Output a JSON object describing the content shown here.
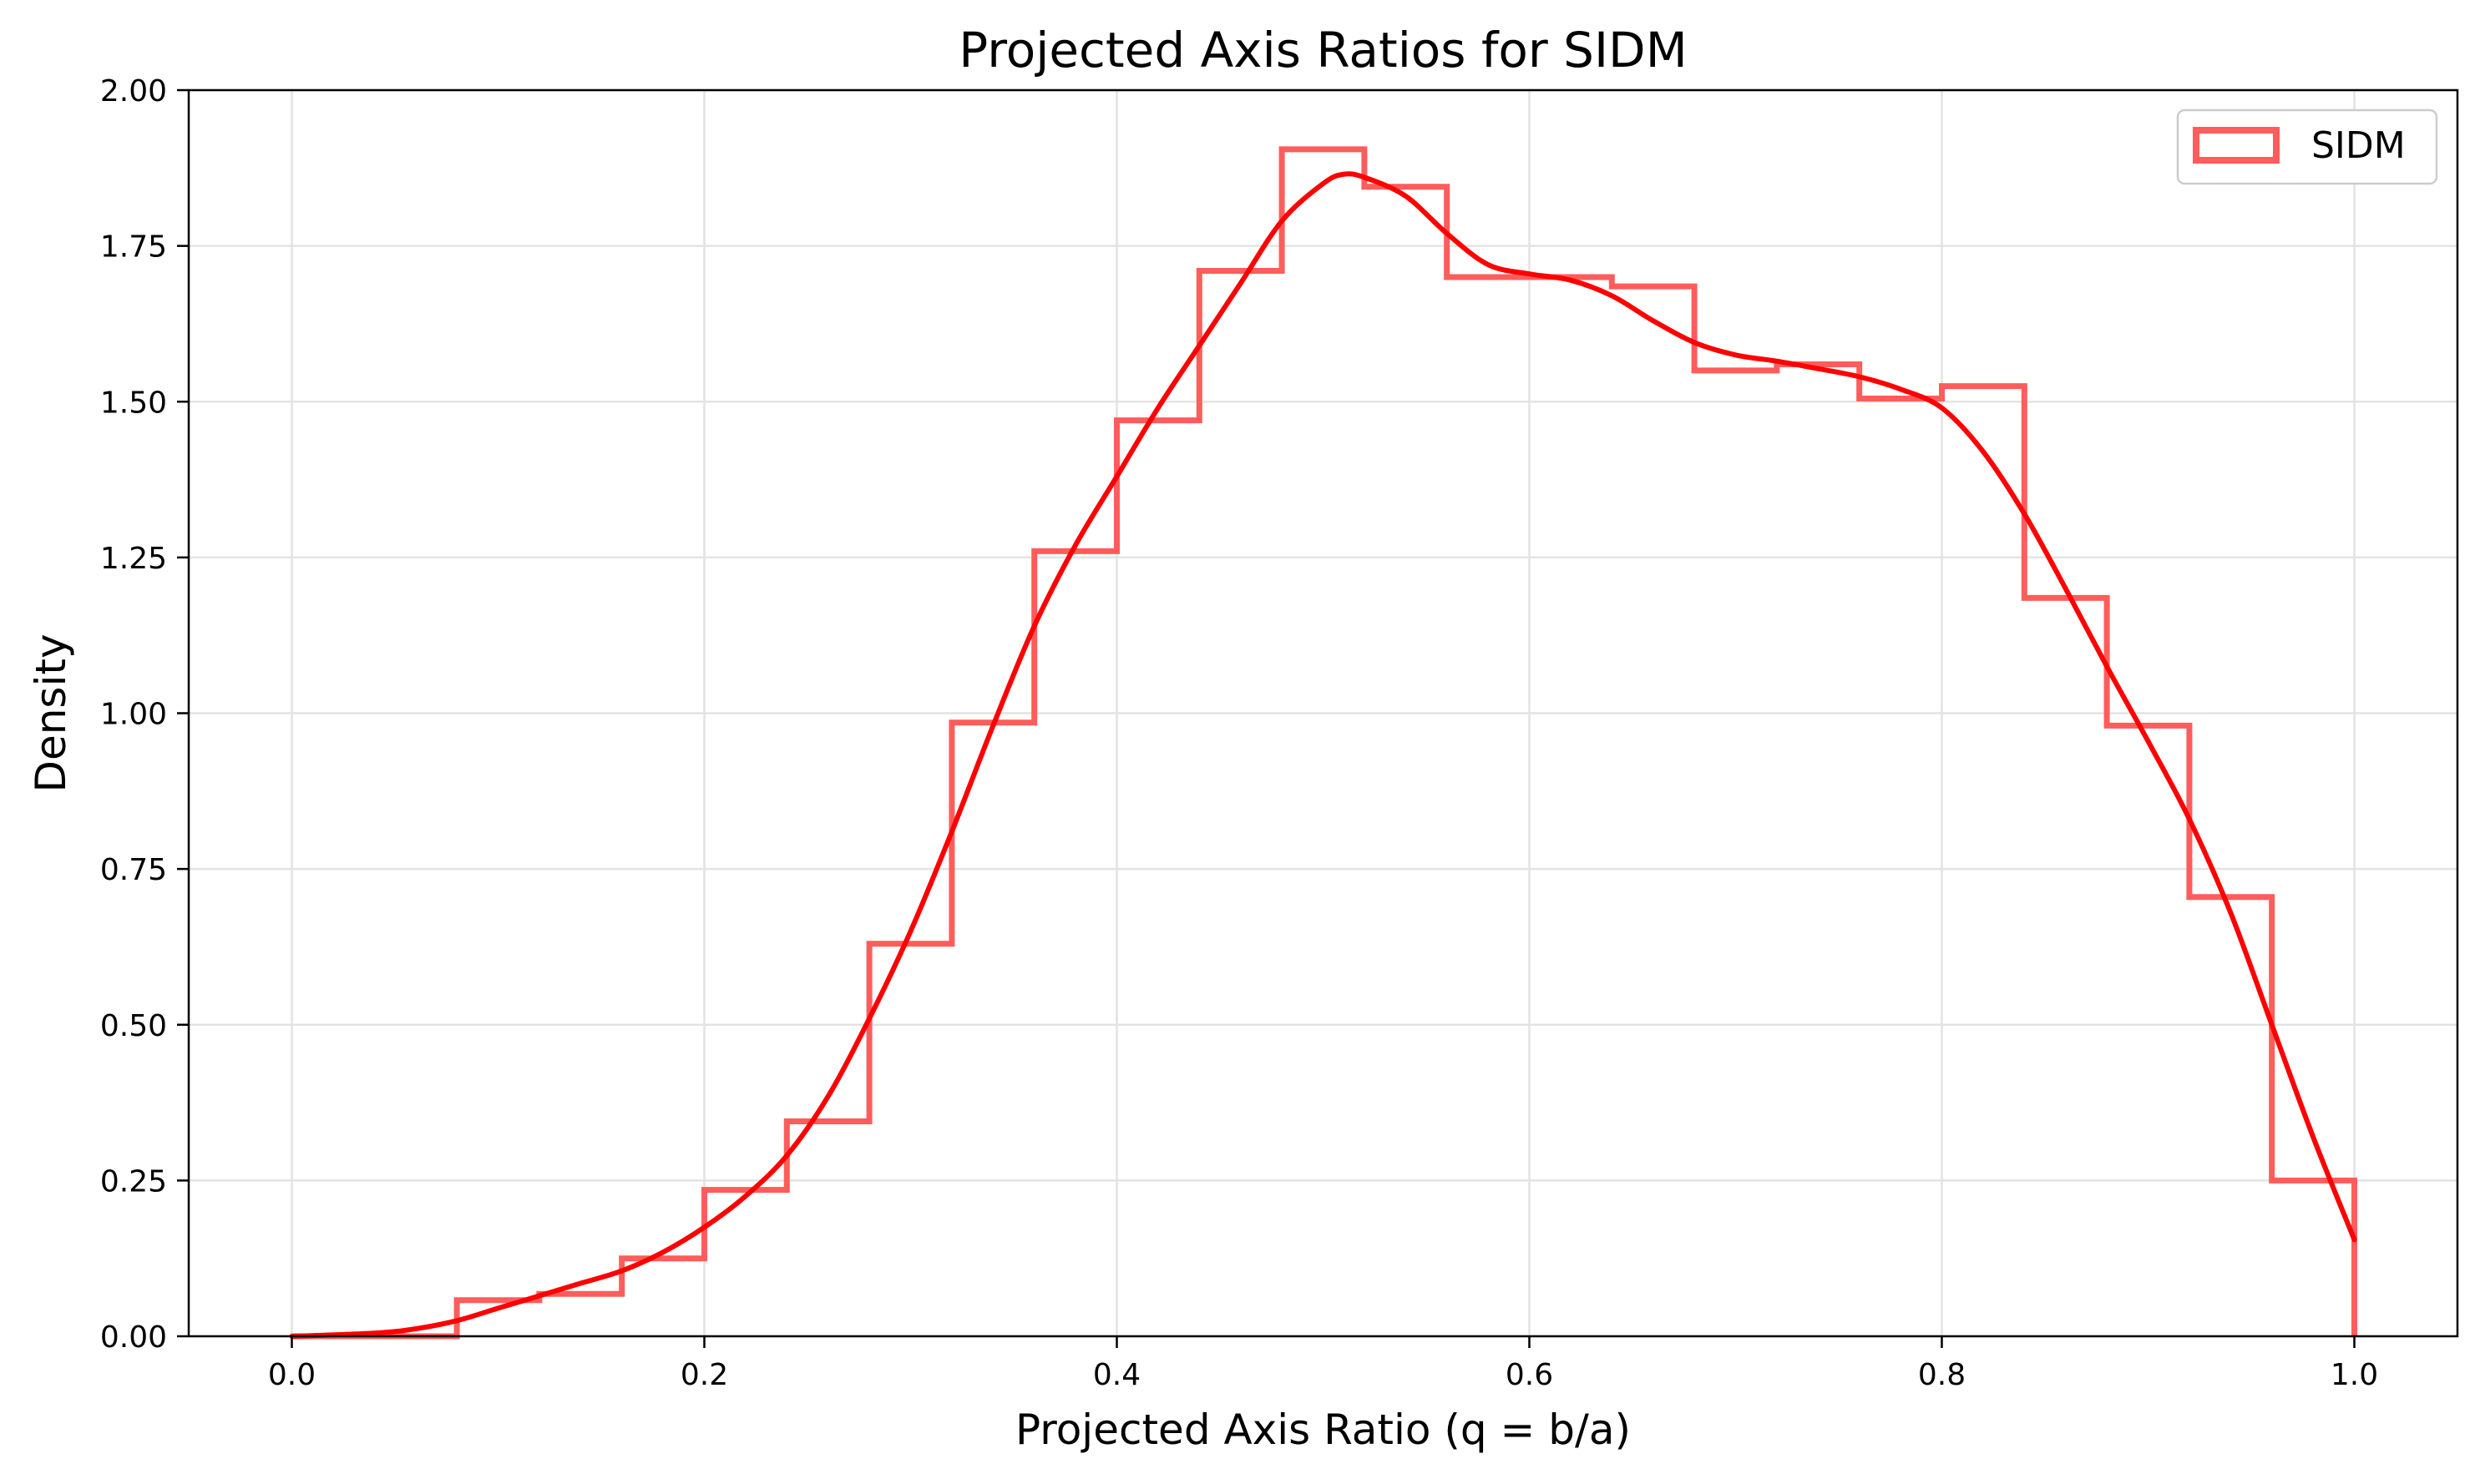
{
  "chart_data": {
    "type": "bar",
    "subtype": "step-histogram-with-kde",
    "title": "Projected Axis Ratios for SIDM",
    "xlabel": "Projected Axis Ratio (q = b/a)",
    "ylabel": "Density",
    "xlim": [
      -0.05,
      1.05
    ],
    "ylim": [
      0.0,
      2.0
    ],
    "xticks": [
      0.0,
      0.2,
      0.4,
      0.6,
      0.8,
      1.0
    ],
    "xtick_labels": [
      "0.0",
      "0.2",
      "0.4",
      "0.6",
      "0.8",
      "1.0"
    ],
    "yticks": [
      0.0,
      0.25,
      0.5,
      0.75,
      1.0,
      1.25,
      1.5,
      1.75,
      2.0
    ],
    "ytick_labels": [
      "0.00",
      "0.25",
      "0.50",
      "0.75",
      "1.00",
      "1.25",
      "1.50",
      "1.75",
      "2.00"
    ],
    "grid": true,
    "legend": {
      "position": "top-right",
      "entries": [
        "SIDM"
      ]
    },
    "colors": {
      "histogram": "#ff5c5c",
      "kde": "#ff0000"
    },
    "histogram": {
      "name": "SIDM",
      "bin_edges": [
        0.0,
        0.04,
        0.08,
        0.12,
        0.16,
        0.2,
        0.24,
        0.28,
        0.32,
        0.36,
        0.4,
        0.44,
        0.48,
        0.52,
        0.56,
        0.6,
        0.64,
        0.68,
        0.72,
        0.76,
        0.8,
        0.84,
        0.88,
        0.92,
        0.96,
        1.0
      ],
      "values": [
        0.0,
        0.0,
        0.058,
        0.068,
        0.125,
        0.235,
        0.345,
        0.63,
        0.985,
        1.26,
        1.47,
        1.71,
        1.905,
        1.845,
        1.7,
        1.7,
        1.685,
        1.55,
        1.56,
        1.505,
        1.525,
        1.185,
        0.98,
        0.705,
        0.25
      ]
    },
    "kde": {
      "x": [
        0.0,
        0.04,
        0.06,
        0.08,
        0.1,
        0.12,
        0.14,
        0.16,
        0.18,
        0.2,
        0.22,
        0.24,
        0.26,
        0.28,
        0.3,
        0.32,
        0.34,
        0.36,
        0.38,
        0.4,
        0.42,
        0.44,
        0.46,
        0.48,
        0.5,
        0.51,
        0.52,
        0.54,
        0.56,
        0.58,
        0.6,
        0.62,
        0.64,
        0.66,
        0.68,
        0.7,
        0.72,
        0.74,
        0.76,
        0.78,
        0.8,
        0.82,
        0.84,
        0.86,
        0.88,
        0.9,
        0.92,
        0.94,
        0.96,
        0.98,
        1.0
      ],
      "y": [
        0.0,
        0.005,
        0.012,
        0.025,
        0.045,
        0.065,
        0.085,
        0.105,
        0.135,
        0.175,
        0.225,
        0.29,
        0.385,
        0.51,
        0.65,
        0.81,
        0.98,
        1.14,
        1.27,
        1.38,
        1.49,
        1.59,
        1.69,
        1.79,
        1.85,
        1.865,
        1.86,
        1.83,
        1.77,
        1.72,
        1.705,
        1.695,
        1.67,
        1.63,
        1.595,
        1.575,
        1.565,
        1.553,
        1.54,
        1.52,
        1.49,
        1.42,
        1.32,
        1.2,
        1.075,
        0.955,
        0.83,
        0.68,
        0.5,
        0.32,
        0.155
      ]
    }
  }
}
